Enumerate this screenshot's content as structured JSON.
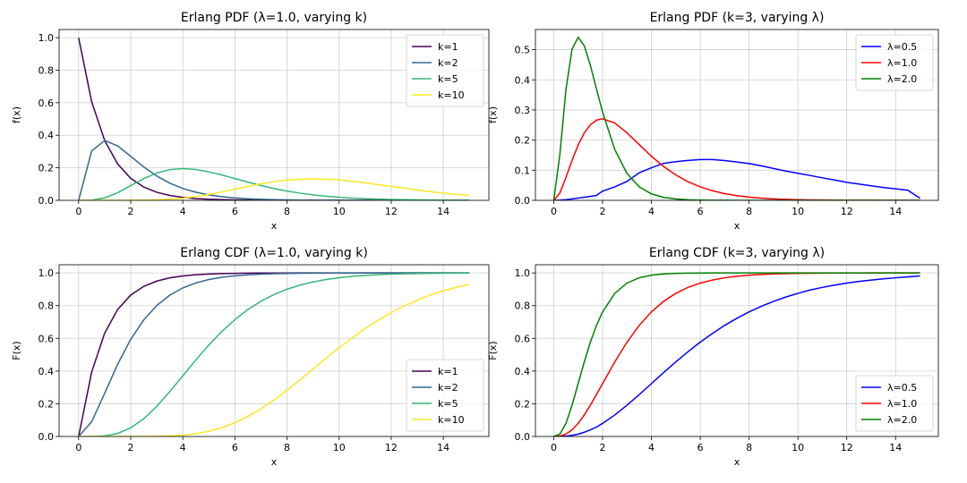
{
  "chart_data": [
    {
      "type": "line",
      "title": "Erlang PDF (λ=1.0, varying k)",
      "xlabel": "x",
      "ylabel": "f(x)",
      "xlim": [
        -0.75,
        15.75
      ],
      "ylim": [
        0,
        1.05
      ],
      "xticks": [
        0,
        2,
        4,
        6,
        8,
        10,
        12,
        14
      ],
      "xtick_labels": [
        "0",
        "2",
        "4",
        "6",
        "8",
        "10",
        "12",
        "14"
      ],
      "yticks": [
        0,
        0.2,
        0.4,
        0.6,
        0.8,
        1.0
      ],
      "ytick_labels": [
        "0.0",
        "0.2",
        "0.4",
        "0.6",
        "0.8",
        "1.0"
      ],
      "grid": true,
      "legend_position": "top-right",
      "function": "pdf",
      "x": [
        0,
        0.5,
        1,
        1.5,
        2,
        2.5,
        3,
        3.5,
        4,
        4.5,
        5,
        5.5,
        6,
        6.5,
        7,
        7.5,
        8,
        8.5,
        9,
        9.5,
        10,
        10.5,
        11,
        11.5,
        12,
        12.5,
        13,
        13.5,
        14,
        14.5,
        15
      ],
      "series": [
        {
          "name": "k=1",
          "color": "#440154",
          "values": [
            1.0,
            0.6065,
            0.3679,
            0.2231,
            0.1353,
            0.0821,
            0.0498,
            0.0302,
            0.0183,
            0.0111,
            0.0067,
            0.0041,
            0.0025,
            0.0015,
            0.0009,
            0.0006,
            0.0003,
            0.0002,
            0.0001,
            0.0001,
            0.0,
            0.0,
            0.0,
            0.0,
            0.0,
            0.0,
            0.0,
            0.0,
            0.0,
            0.0,
            0.0
          ]
        },
        {
          "name": "k=2",
          "color": "#31688e",
          "values": [
            0.0,
            0.3033,
            0.3679,
            0.3347,
            0.2707,
            0.2052,
            0.1494,
            0.1057,
            0.0733,
            0.05,
            0.0337,
            0.0225,
            0.0149,
            0.0098,
            0.0064,
            0.0041,
            0.0027,
            0.0017,
            0.0011,
            0.0007,
            0.0005,
            0.0003,
            0.0002,
            0.0001,
            0.0001,
            0.0,
            0.0,
            0.0,
            0.0,
            0.0,
            0.0
          ]
        },
        {
          "name": "k=5",
          "color": "#35b779",
          "values": [
            0.0,
            0.0016,
            0.0153,
            0.0471,
            0.0902,
            0.1336,
            0.168,
            0.1888,
            0.1954,
            0.1898,
            0.1755,
            0.1558,
            0.1339,
            0.1118,
            0.0912,
            0.0729,
            0.0573,
            0.0443,
            0.0337,
            0.0254,
            0.0189,
            0.0139,
            0.0102,
            0.0074,
            0.0053,
            0.0038,
            0.0027,
            0.0019,
            0.0013,
            0.0009,
            0.0006
          ]
        },
        {
          "name": "k=10",
          "color": "#fde725",
          "values": [
            0.0,
            0.0,
            0.0,
            0.0,
            0.0004,
            0.0017,
            0.0027,
            0.0084,
            0.0132,
            0.0232,
            0.0363,
            0.0519,
            0.0688,
            0.0857,
            0.1014,
            0.1144,
            0.1241,
            0.1297,
            0.1318,
            0.1301,
            0.1251,
            0.1174,
            0.1079,
            0.0971,
            0.0859,
            0.0746,
            0.0638,
            0.0539,
            0.0448,
            0.0369,
            0.0299
          ]
        }
      ]
    },
    {
      "type": "line",
      "title": "Erlang PDF (k=3, varying λ)",
      "xlabel": "x",
      "ylabel": "f(x)",
      "xlim": [
        -0.75,
        15.75
      ],
      "ylim": [
        0,
        0.567
      ],
      "xticks": [
        0,
        2,
        4,
        6,
        8,
        10,
        12,
        14
      ],
      "xtick_labels": [
        "0",
        "2",
        "4",
        "6",
        "8",
        "10",
        "12",
        "14"
      ],
      "yticks": [
        0,
        0.1,
        0.2,
        0.3,
        0.4,
        0.5
      ],
      "ytick_labels": [
        "0.0",
        "0.1",
        "0.2",
        "0.3",
        "0.4",
        "0.5"
      ],
      "grid": true,
      "legend_position": "top-right",
      "function": "pdf",
      "x": [
        0,
        0.25,
        0.5,
        0.75,
        1,
        1.25,
        1.5,
        1.75,
        2,
        2.5,
        3,
        3.5,
        4,
        4.5,
        5,
        5.5,
        6,
        6.5,
        7,
        7.5,
        8,
        8.5,
        9,
        9.5,
        10,
        10.5,
        11,
        11.5,
        12,
        12.5,
        13,
        13.5,
        14,
        14.5,
        15
      ],
      "series": [
        {
          "name": "λ=0.5",
          "color": "#0000ff",
          "values": [
            0.0,
            0.0007,
            0.0024,
            0.0048,
            0.0076,
            0.0105,
            0.0133,
            0.0163,
            0.0307,
            0.0446,
            0.0628,
            0.0916,
            0.1083,
            0.1229,
            0.1283,
            0.1326,
            0.1353,
            0.1353,
            0.1321,
            0.1272,
            0.1221,
            0.1147,
            0.1058,
            0.0972,
            0.0898,
            0.0826,
            0.0748,
            0.0675,
            0.0597,
            0.0543,
            0.0484,
            0.0428,
            0.0383,
            0.0339,
            0.0066
          ]
        },
        {
          "name": "λ=1.0",
          "color": "#ff0000",
          "values": [
            0.0,
            0.0243,
            0.0758,
            0.1329,
            0.1839,
            0.2238,
            0.251,
            0.2661,
            0.2707,
            0.2565,
            0.224,
            0.1849,
            0.1465,
            0.1125,
            0.0842,
            0.0619,
            0.0446,
            0.0318,
            0.0223,
            0.0156,
            0.0107,
            0.0073,
            0.005,
            0.0034,
            0.0023,
            0.0015,
            0.001,
            0.0007,
            0.0004,
            0.0003,
            0.0002,
            0.0001,
            0.0001,
            0.0001,
            0.0
          ]
        },
        {
          "name": "λ=2.0",
          "color": "#008000",
          "values": [
            0.0,
            0.1516,
            0.3679,
            0.5021,
            0.5413,
            0.5131,
            0.4481,
            0.3699,
            0.2931,
            0.1684,
            0.0892,
            0.0447,
            0.0215,
            0.01,
            0.0045,
            0.002,
            0.0009,
            0.0004,
            0.0002,
            0.0001,
            0.0,
            0.0,
            0.0,
            0.0,
            0.0,
            0.0,
            0.0,
            0.0,
            0.0,
            0.0,
            0.0,
            0.0,
            0.0,
            0.0,
            0.0
          ]
        }
      ]
    },
    {
      "type": "line",
      "title": "Erlang CDF (λ=1.0, varying k)",
      "xlabel": "x",
      "ylabel": "F(x)",
      "xlim": [
        -0.75,
        15.75
      ],
      "ylim": [
        0,
        1.05
      ],
      "xticks": [
        0,
        2,
        4,
        6,
        8,
        10,
        12,
        14
      ],
      "xtick_labels": [
        "0",
        "2",
        "4",
        "6",
        "8",
        "10",
        "12",
        "14"
      ],
      "yticks": [
        0,
        0.2,
        0.4,
        0.6,
        0.8,
        1.0
      ],
      "ytick_labels": [
        "0.0",
        "0.2",
        "0.4",
        "0.6",
        "0.8",
        "1.0"
      ],
      "grid": true,
      "legend_position": "bottom-right",
      "function": "cdf",
      "x": [
        0,
        0.5,
        1,
        1.5,
        2,
        2.5,
        3,
        3.5,
        4,
        4.5,
        5,
        5.5,
        6,
        6.5,
        7,
        7.5,
        8,
        8.5,
        9,
        9.5,
        10,
        10.5,
        11,
        11.5,
        12,
        12.5,
        13,
        13.5,
        14,
        14.5,
        15
      ],
      "series": [
        {
          "name": "k=1",
          "color": "#440154",
          "values": [
            0.0,
            0.3935,
            0.6321,
            0.7769,
            0.8647,
            0.9179,
            0.9502,
            0.9698,
            0.9817,
            0.9889,
            0.9933,
            0.9959,
            0.9975,
            0.9985,
            0.9991,
            0.9994,
            0.9997,
            0.9998,
            0.9999,
            0.9999,
            1.0,
            1.0,
            1.0,
            1.0,
            1.0,
            1.0,
            1.0,
            1.0,
            1.0,
            1.0,
            1.0
          ]
        },
        {
          "name": "k=2",
          "color": "#31688e",
          "values": [
            0.0,
            0.0902,
            0.2642,
            0.4422,
            0.594,
            0.7127,
            0.8009,
            0.8641,
            0.9084,
            0.9389,
            0.9596,
            0.9734,
            0.9826,
            0.9887,
            0.9927,
            0.9953,
            0.997,
            0.9981,
            0.9988,
            0.9992,
            0.9995,
            0.9997,
            0.9998,
            0.9999,
            0.9999,
            1.0,
            1.0,
            1.0,
            1.0,
            1.0,
            1.0
          ]
        },
        {
          "name": "k=5",
          "color": "#35b779",
          "values": [
            0.0,
            0.0002,
            0.0037,
            0.0186,
            0.0527,
            0.1088,
            0.1847,
            0.2746,
            0.3712,
            0.4679,
            0.5595,
            0.6424,
            0.7149,
            0.7763,
            0.827,
            0.8679,
            0.9004,
            0.9256,
            0.945,
            0.9597,
            0.9707,
            0.9789,
            0.9849,
            0.9893,
            0.9924,
            0.9947,
            0.9963,
            0.9974,
            0.9982,
            0.9988,
            0.9991
          ]
        },
        {
          "name": "k=10",
          "color": "#fde725",
          "values": [
            0.0,
            0.0,
            0.0,
            0.0,
            0.0,
            0.0002,
            0.0011,
            0.0033,
            0.0081,
            0.0171,
            0.0318,
            0.0538,
            0.0839,
            0.1224,
            0.1695,
            0.2237,
            0.2834,
            0.3466,
            0.4126,
            0.4787,
            0.5421,
            0.6024,
            0.6595,
            0.7108,
            0.7576,
            0.7985,
            0.8338,
            0.8643,
            0.8906,
            0.9117,
            0.9301
          ]
        }
      ]
    },
    {
      "type": "line",
      "title": "Erlang CDF (k=3, varying λ)",
      "xlabel": "x",
      "ylabel": "F(x)",
      "xlim": [
        -0.75,
        15.75
      ],
      "ylim": [
        0,
        1.05
      ],
      "xticks": [
        0,
        2,
        4,
        6,
        8,
        10,
        12,
        14
      ],
      "xtick_labels": [
        "0",
        "2",
        "4",
        "6",
        "8",
        "10",
        "12",
        "14"
      ],
      "yticks": [
        0,
        0.2,
        0.4,
        0.6,
        0.8,
        1.0
      ],
      "ytick_labels": [
        "0.0",
        "0.2",
        "0.4",
        "0.6",
        "0.8",
        "1.0"
      ],
      "grid": true,
      "legend_position": "bottom-right",
      "function": "cdf",
      "x": [
        0,
        0.25,
        0.5,
        0.75,
        1,
        1.25,
        1.5,
        1.75,
        2,
        2.5,
        3,
        3.5,
        4,
        4.5,
        5,
        5.5,
        6,
        6.5,
        7,
        7.5,
        8,
        8.5,
        9,
        9.5,
        10,
        10.5,
        11,
        11.5,
        12,
        12.5,
        13,
        13.5,
        14,
        14.5,
        15
      ],
      "series": [
        {
          "name": "λ=0.5",
          "color": "#0000ff",
          "values": [
            0.0,
            0.0001,
            0.0022,
            0.0066,
            0.0144,
            0.0261,
            0.0405,
            0.0573,
            0.0803,
            0.1315,
            0.1912,
            0.2561,
            0.3233,
            0.3907,
            0.4562,
            0.5186,
            0.5768,
            0.6301,
            0.6792,
            0.7229,
            0.7619,
            0.7963,
            0.8264,
            0.8524,
            0.8753,
            0.8953,
            0.9116,
            0.9254,
            0.938,
            0.9482,
            0.9566,
            0.964,
            0.9704,
            0.9762,
            0.9814
          ]
        },
        {
          "name": "λ=1.0",
          "color": "#ff0000",
          "values": [
            0.0,
            0.0022,
            0.0144,
            0.0405,
            0.0803,
            0.1315,
            0.1912,
            0.2561,
            0.3233,
            0.4562,
            0.5768,
            0.6792,
            0.7619,
            0.8264,
            0.8753,
            0.9116,
            0.938,
            0.9566,
            0.9704,
            0.9797,
            0.9862,
            0.9907,
            0.9938,
            0.9959,
            0.9972,
            0.9982,
            0.9988,
            0.9992,
            0.9995,
            0.9997,
            0.9998,
            0.9999,
            0.9999,
            0.9999,
            1.0
          ]
        },
        {
          "name": "λ=2.0",
          "color": "#008000",
          "values": [
            0.0,
            0.0144,
            0.0803,
            0.1912,
            0.3233,
            0.4562,
            0.5768,
            0.6792,
            0.7619,
            0.8753,
            0.938,
            0.9704,
            0.9862,
            0.9938,
            0.9972,
            0.9988,
            0.9995,
            0.9998,
            0.9999,
            1.0,
            1.0,
            1.0,
            1.0,
            1.0,
            1.0,
            1.0,
            1.0,
            1.0,
            1.0,
            1.0,
            1.0,
            1.0,
            1.0,
            1.0,
            1.0
          ]
        }
      ]
    }
  ]
}
